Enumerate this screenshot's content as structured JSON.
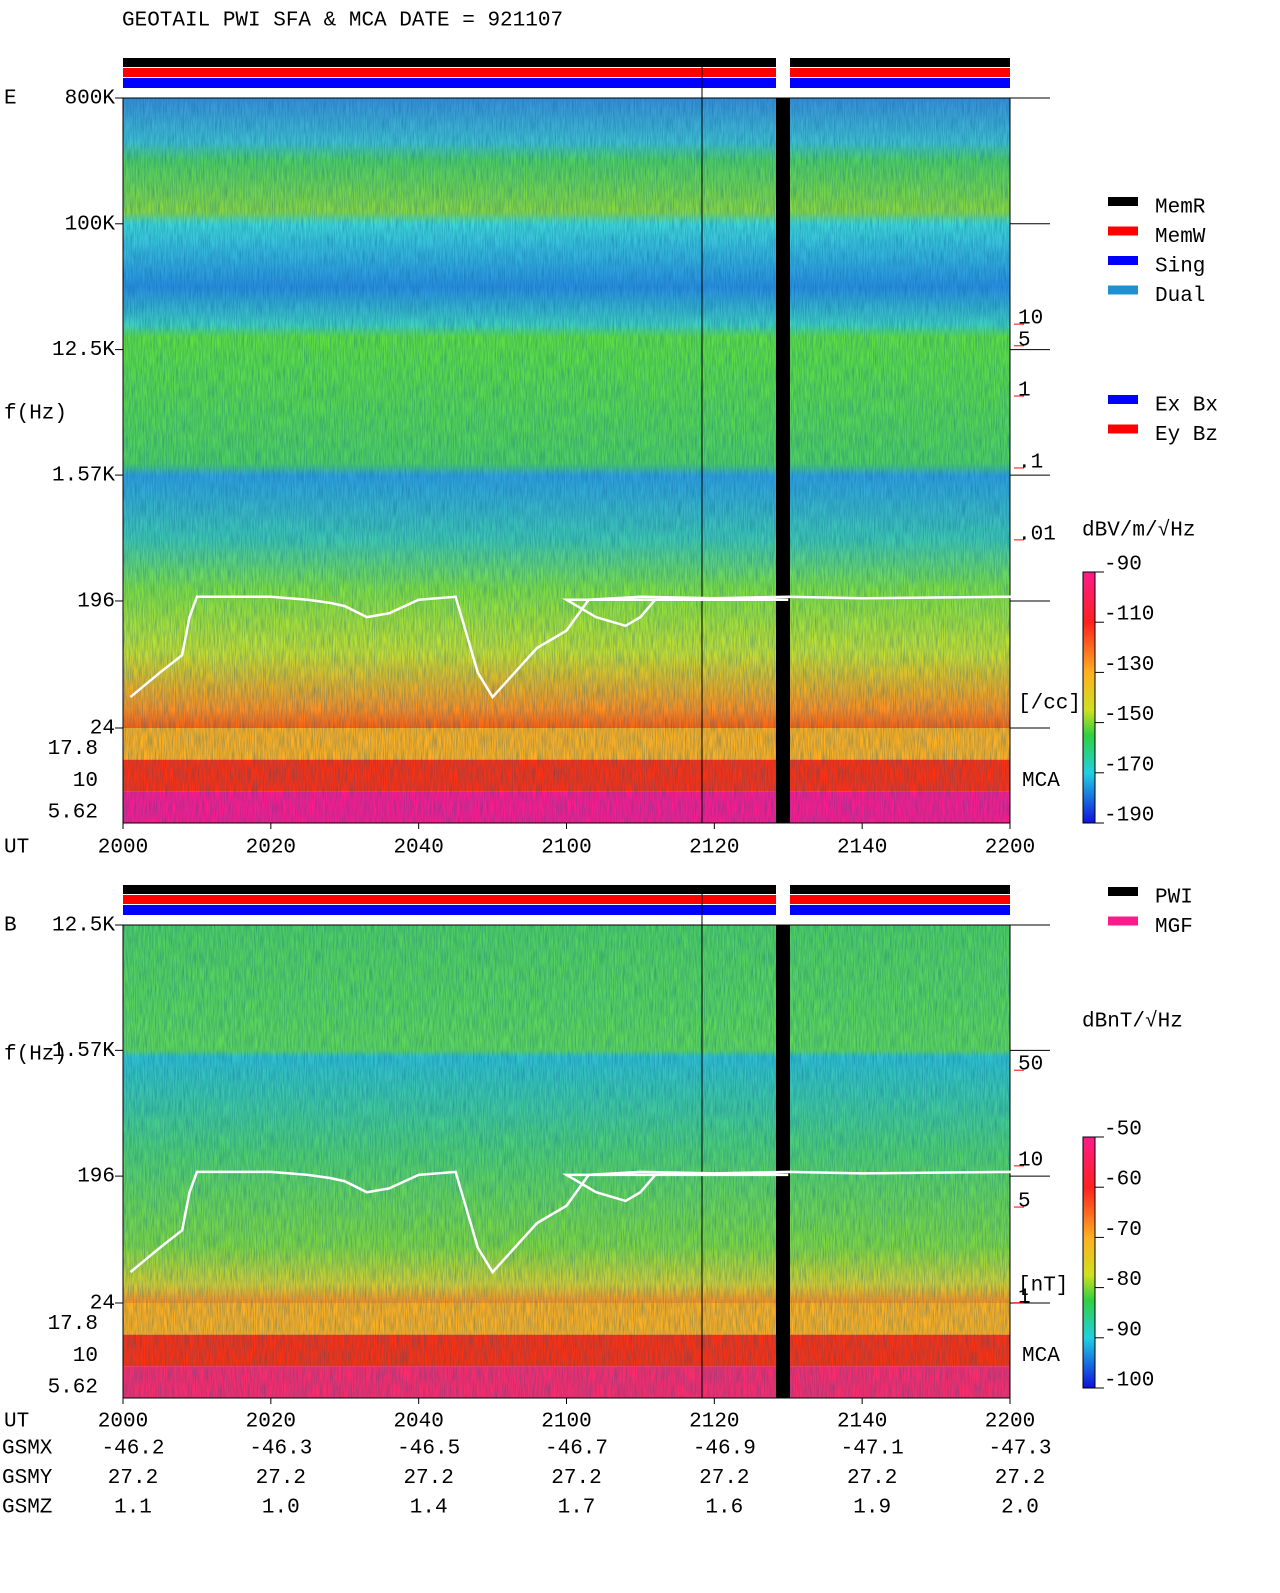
{
  "title": "GEOTAIL  PWI SFA & MCA   DATE = 921107",
  "chart_data": [
    {
      "type": "spectrogram",
      "panel_label": "E",
      "ylabel": "f(Hz)",
      "xlabel": "UT",
      "yscale": "log",
      "ylim": [
        24,
        800000
      ],
      "yticks": [
        {
          "value": 800000,
          "label": "800K"
        },
        {
          "value": 100000,
          "label": "100K"
        },
        {
          "value": 12500,
          "label": "12.5K"
        },
        {
          "value": 1570,
          "label": "1.57K"
        },
        196,
        24
      ],
      "mca_label": "MCA",
      "mca_ticks": [
        17.8,
        10,
        5.62
      ],
      "xticks": [
        "2000",
        "2020",
        "2040",
        "2100",
        "2120",
        "2140",
        "2200"
      ],
      "x": [
        "2001",
        "2005",
        "2008",
        "2009",
        "2010",
        "2020",
        "2025",
        "2028",
        "2030",
        "2033",
        "2036",
        "2040",
        "2045",
        "2048",
        "2050",
        "2053",
        "2056",
        "2060",
        "2063",
        "2070",
        "2080",
        "2090",
        "2100",
        "2104",
        "2108",
        "2110",
        "2112",
        "2120",
        "2130",
        "2140",
        "2160",
        "2180",
        "2200"
      ],
      "series": [
        {
          "color": "#ffffff",
          "values": [
            40,
            60,
            80,
            150,
            210,
            210,
            200,
            190,
            180,
            150,
            160,
            200,
            210,
            60,
            40,
            60,
            90,
            120,
            200,
            210,
            205,
            200,
            200,
            150,
            130,
            150,
            200,
            205,
            210,
            205,
            210,
            205,
            210
          ]
        }
      ],
      "status_legend": [
        {
          "name": "MemR",
          "color": "#000000"
        },
        {
          "name": "MemW",
          "color": "#ff0000"
        },
        {
          "name": "Sing",
          "color": "#0000ff"
        },
        {
          "name": "Dual",
          "color": "#2090d0"
        }
      ],
      "antenna_legend": [
        {
          "name": "Ex Bx",
          "color": "#0000ff"
        },
        {
          "name": "Ey Bz",
          "color": "#ff0000"
        }
      ],
      "colorbar": {
        "label": "dBV/m/√Hz",
        "lim": [
          -190,
          -90
        ],
        "ticks": [
          -90,
          -110,
          -130,
          -150,
          -170,
          -190
        ]
      },
      "y3label": "[/cc]",
      "y3scale": "log",
      "y3lim": [
        2e-05,
        11500
      ],
      "y3ticks": [
        10,
        5,
        1,
        {
          "value": 0.1,
          "label": ".1"
        },
        {
          "value": 0.01,
          "label": ".01"
        }
      ],
      "y3color": "#ff0000"
    },
    {
      "type": "spectrogram",
      "panel_label": "B",
      "ylabel": "f(Hz)",
      "xlabel": "UT",
      "yscale": "log",
      "ylim": [
        24,
        12500
      ],
      "yticks": [
        {
          "value": 12500,
          "label": "12.5K"
        },
        {
          "value": 1570,
          "label": "1.57K"
        },
        196,
        24
      ],
      "mca_label": "MCA",
      "mca_ticks": [
        17.8,
        10,
        5.62
      ],
      "xticks": [
        "2000",
        "2020",
        "2040",
        "2100",
        "2120",
        "2140",
        "2200"
      ],
      "x": [
        "2001",
        "2005",
        "2008",
        "2009",
        "2010",
        "2020",
        "2025",
        "2028",
        "2030",
        "2033",
        "2036",
        "2040",
        "2045",
        "2048",
        "2050",
        "2053",
        "2056",
        "2060",
        "2063",
        "2070",
        "2080",
        "2090",
        "2100",
        "2104",
        "2108",
        "2110",
        "2112",
        "2120",
        "2130",
        "2140",
        "2160",
        "2180",
        "2200"
      ],
      "series": [
        {
          "color": "#ffffff",
          "values": [
            40,
            60,
            80,
            150,
            210,
            210,
            200,
            190,
            180,
            150,
            160,
            200,
            210,
            60,
            40,
            60,
            90,
            120,
            200,
            210,
            205,
            200,
            200,
            150,
            130,
            150,
            200,
            205,
            210,
            205,
            210,
            205,
            210
          ]
        }
      ],
      "status_legend": [
        {
          "name": "PWI",
          "color": "#000000"
        },
        {
          "name": "MGF",
          "color": "#ff1a8c"
        }
      ],
      "colorbar": {
        "label": "dBnT/√Hz",
        "lim": [
          -100,
          -50
        ],
        "ticks": [
          -50,
          -60,
          -70,
          -80,
          -90,
          -100
        ]
      },
      "y3label": "[nT]",
      "y3scale": "log",
      "y3lim": [
        0.9,
        520
      ],
      "y3ticks": [
        50,
        10,
        5,
        1
      ],
      "y3color": "#ff0000"
    }
  ],
  "orbit_table": {
    "rows": [
      {
        "label": "GSMX",
        "values": [
          -46.2,
          -46.3,
          -46.5,
          -46.7,
          -46.9,
          -47.1,
          -47.3
        ]
      },
      {
        "label": "GSMY",
        "values": [
          27.2,
          27.2,
          27.2,
          27.2,
          27.2,
          27.2,
          27.2
        ]
      },
      {
        "label": "GSMZ",
        "values": [
          1.1,
          {
            "value": 1,
            "label": "1.0"
          },
          1.4,
          1.7,
          1.6,
          1.9,
          {
            "value": 2,
            "label": "2.0"
          }
        ]
      }
    ]
  }
}
